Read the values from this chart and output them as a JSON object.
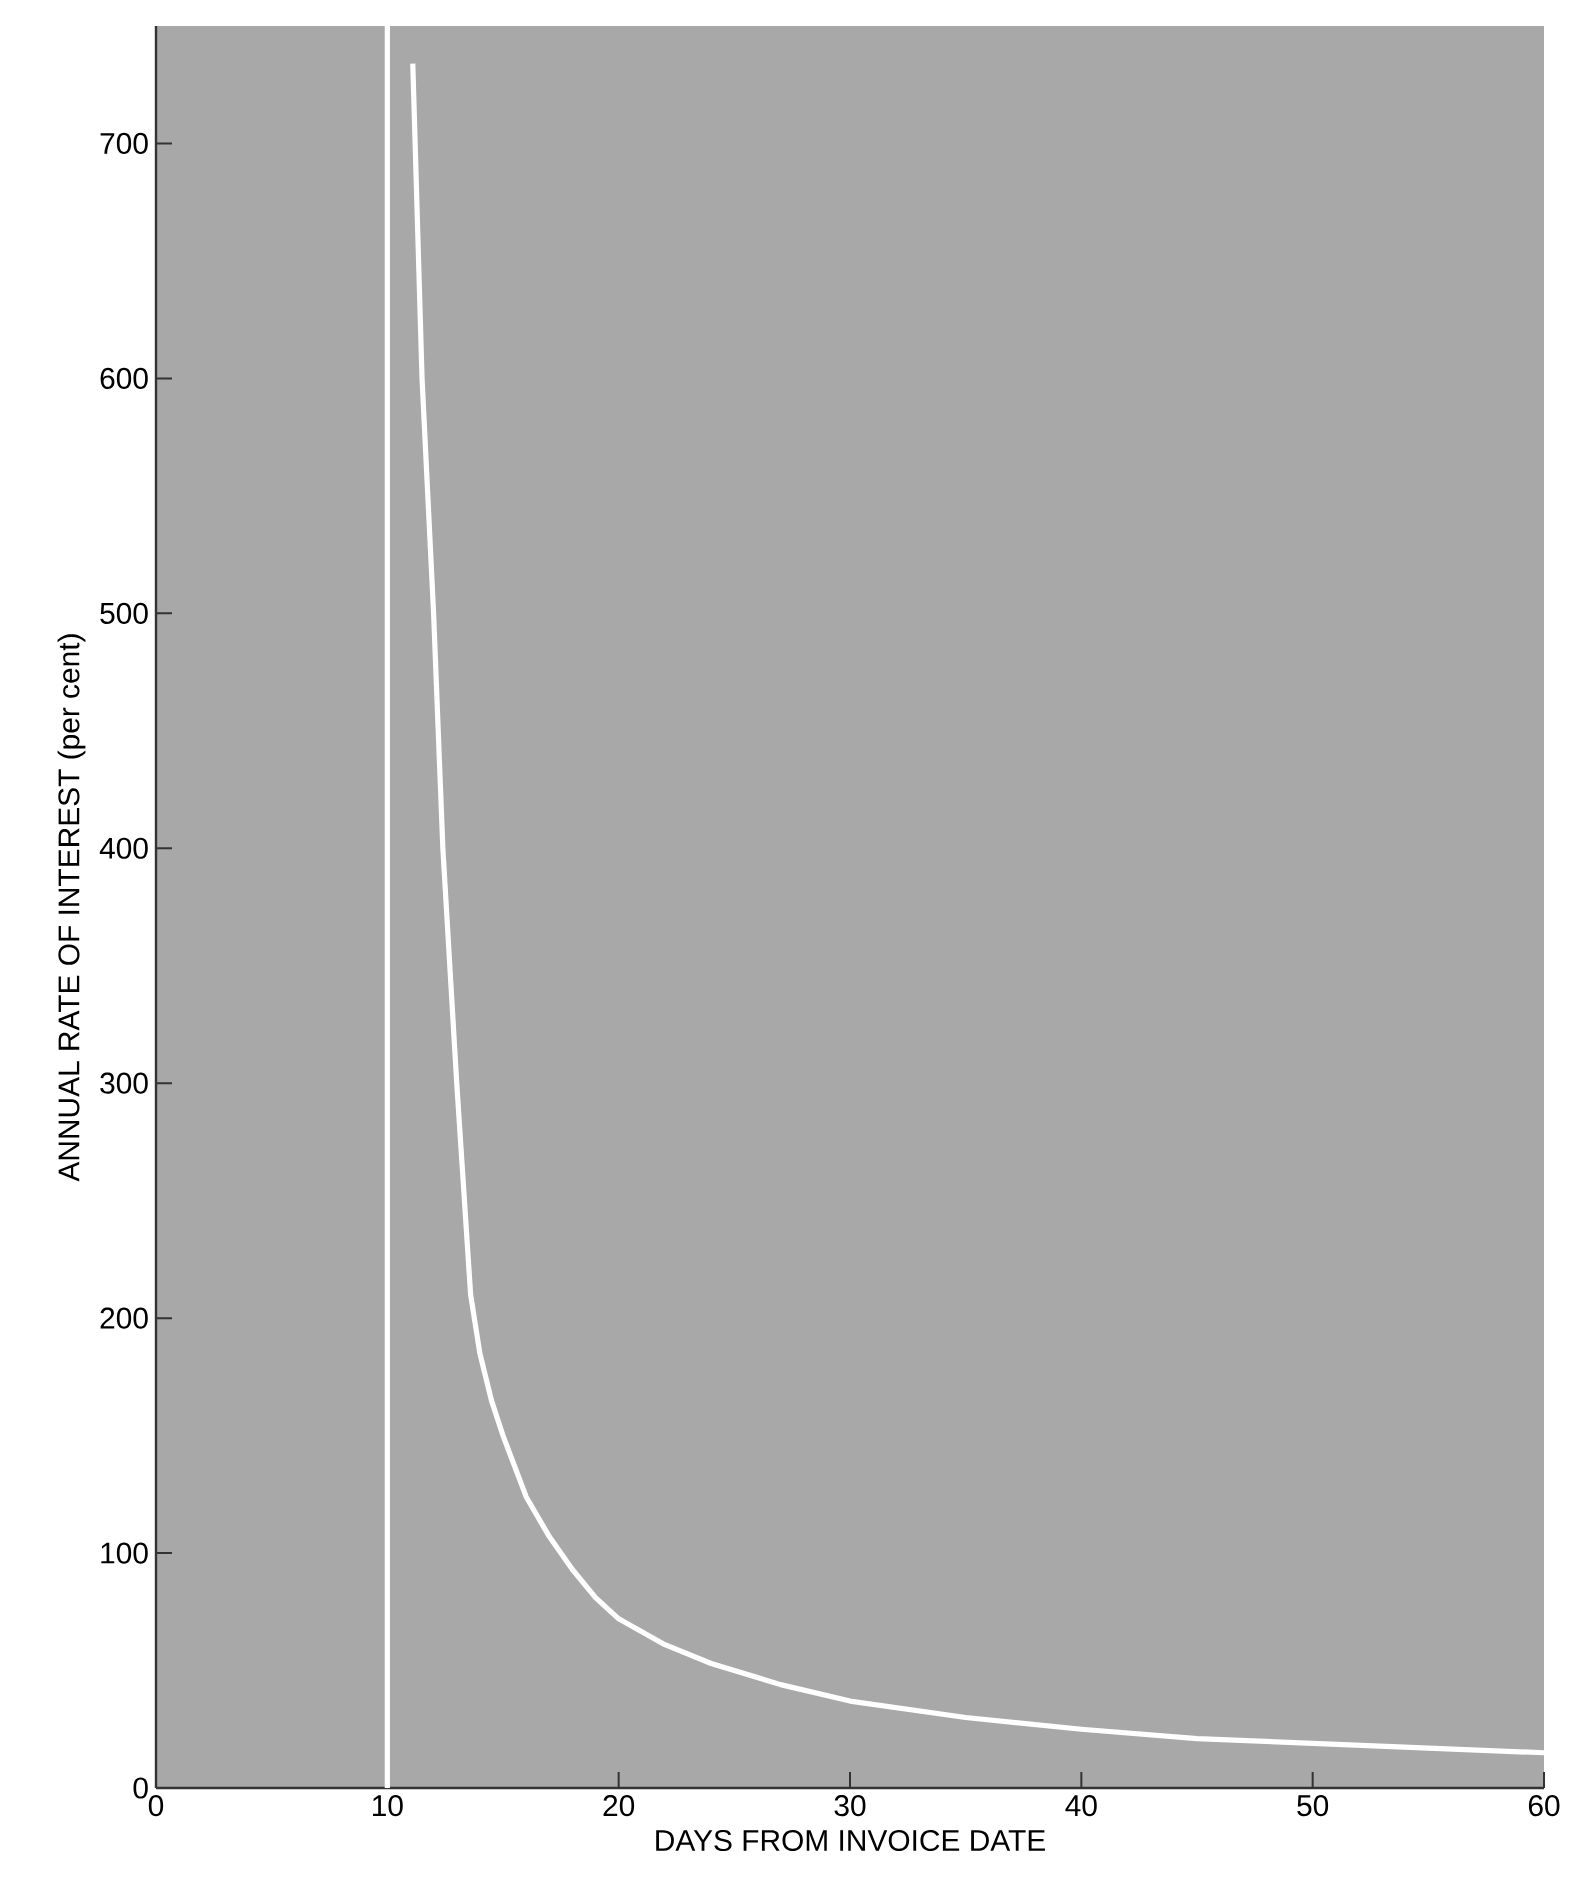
{
  "chart_data": {
    "type": "line",
    "xlabel": "DAYS FROM INVOICE DATE",
    "ylabel": "ANNUAL RATE OF INTEREST (per cent)",
    "xlim": [
      0,
      60
    ],
    "ylim": [
      0,
      750
    ],
    "xticks": [
      0,
      10,
      20,
      30,
      40,
      50,
      60
    ],
    "yticks": [
      0,
      100,
      200,
      300,
      400,
      500,
      600,
      700
    ],
    "marker": "none",
    "line_style": "solid",
    "ref_lines": [
      {
        "axis": "x",
        "value": 10,
        "color": "#ffffff"
      }
    ],
    "series": [
      {
        "color": "#ffffff",
        "x": [
          11.1,
          11.5,
          12.0,
          12.4,
          13.0,
          13.6,
          14,
          14.5,
          15,
          16,
          17,
          18,
          19,
          20,
          22,
          24,
          27,
          30,
          35,
          40,
          45,
          50,
          55,
          60
        ],
        "values": [
          734,
          600,
          500,
          400,
          300,
          210,
          185,
          165,
          150,
          124,
          107,
          93,
          81,
          72,
          61,
          53,
          44,
          37,
          30,
          25,
          21,
          19,
          17,
          15
        ]
      }
    ]
  }
}
